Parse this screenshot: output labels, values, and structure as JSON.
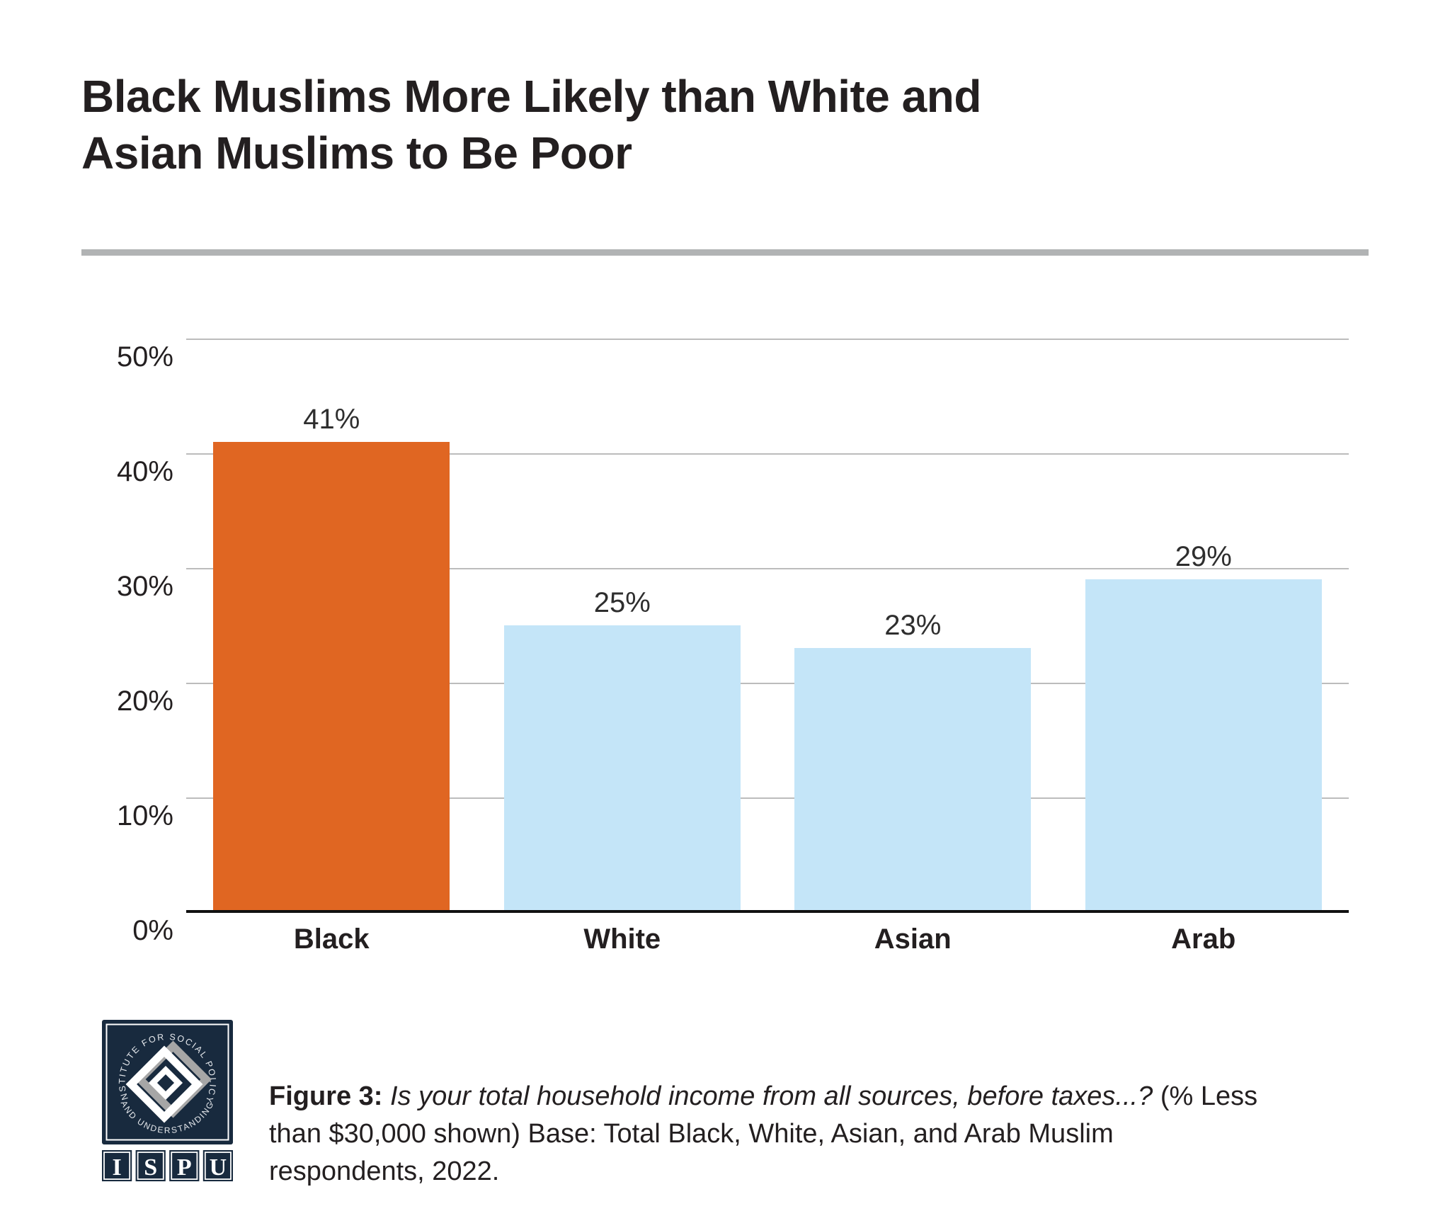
{
  "title": {
    "line1": "Black Muslims More Likely than White and",
    "line2": "Asian Muslims to Be Poor",
    "full": "Black Muslims More Likely than White and Asian Muslims to Be Poor"
  },
  "chart_data": {
    "type": "bar",
    "title": "Black Muslims More Likely than White and Asian Muslims to Be Poor",
    "categories": [
      "Black",
      "White",
      "Asian",
      "Arab"
    ],
    "values": [
      41,
      25,
      23,
      29
    ],
    "value_labels": [
      "41%",
      "25%",
      "23%",
      "29%"
    ],
    "bar_colors": [
      "#E06622",
      "#C4E5F8",
      "#C4E5F8",
      "#C4E5F8"
    ],
    "y_ticks": [
      "50%",
      "40%",
      "30%",
      "20%",
      "10%",
      "0%"
    ],
    "ylim": [
      0,
      50
    ],
    "xlabel": "",
    "ylabel": "",
    "grid": true,
    "legend": "none",
    "highlight_category": "Black"
  },
  "caption": {
    "figure_label": "Figure 3: ",
    "question_italic": "Is your total household income from all sources, before taxes...? ",
    "line1_tail": "(% Less",
    "line2": "than $30,000 shown) Base: Total Black, White, Asian, and Arab Muslim",
    "line3": "respondents, 2022."
  },
  "logo": {
    "arc_top": "INSTITUTE FOR SOCIAL POLICY",
    "arc_bottom": "AND UNDERSTANDING",
    "letters": [
      "I",
      "S",
      "P",
      "U"
    ]
  },
  "colors": {
    "highlight_orange": "#E06622",
    "light_blue": "#C4E5F8",
    "gridline_gray": "#BCBCBC",
    "axis_black": "#111111",
    "divider_gray": "#B1B3B4",
    "text_dark": "#231F20",
    "logo_navy": "#182A3E",
    "logo_gray": "#A6A6A6"
  }
}
